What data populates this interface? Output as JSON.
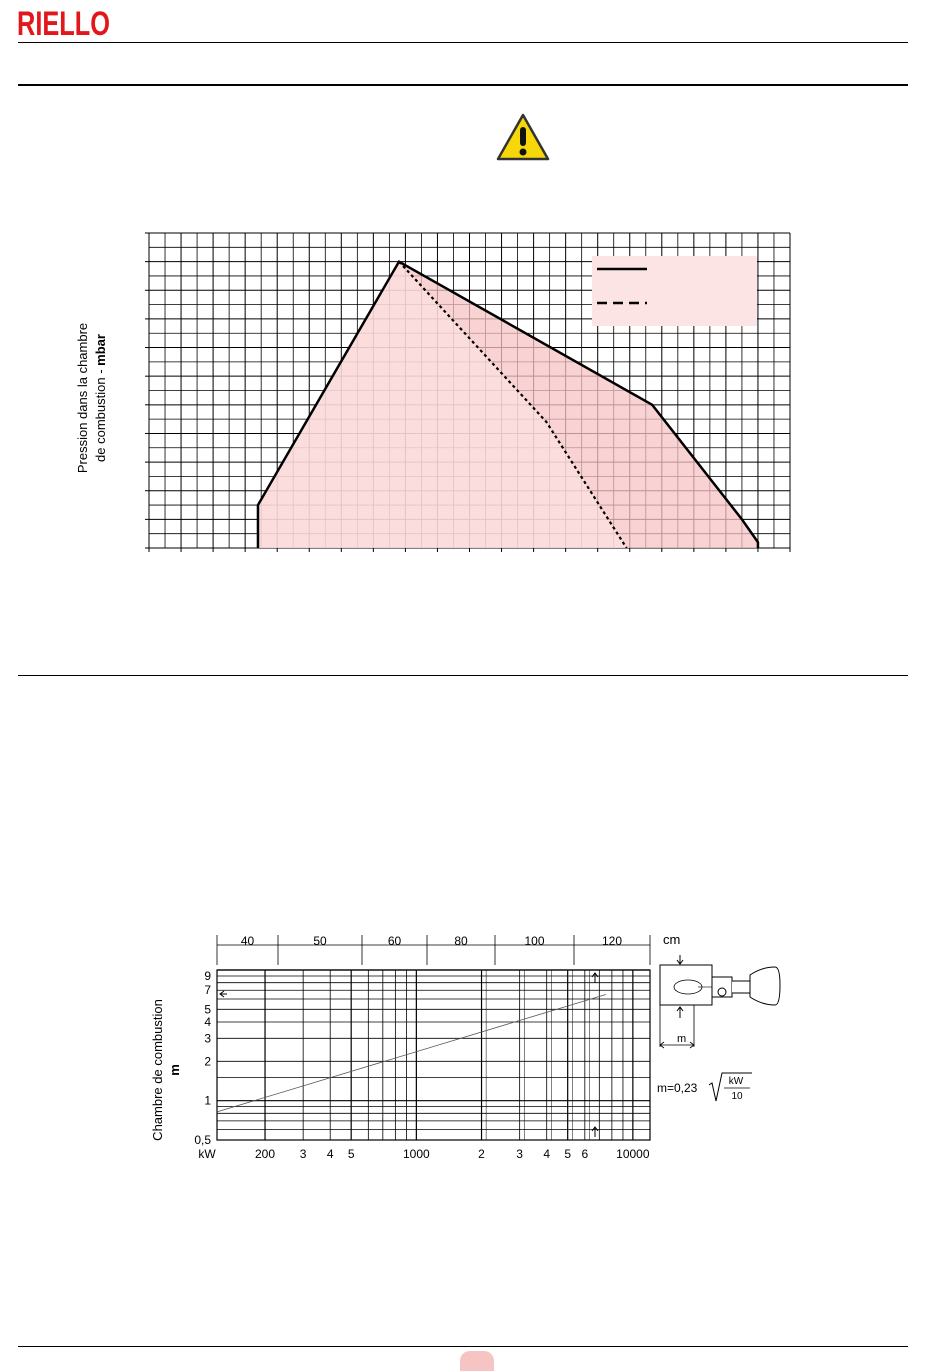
{
  "header": {
    "logo_text": "RIELLO",
    "brand_color": "#e3161b"
  },
  "warning_icon": "warning-triangle-icon",
  "firing_range_chart": {
    "ylabel_line1": "Pression dans la chambre",
    "ylabel_line2_prefix": "de combustion - ",
    "ylabel_line2_unit": "mbar",
    "fill_color": "#f7c4c4",
    "legend": [
      {
        "style": "solid"
      },
      {
        "style": "dashed"
      }
    ]
  },
  "chart_data": [
    {
      "type": "area",
      "title": "",
      "xlabel": "",
      "ylabel": "Pression dans la chambre de combustion - mbar",
      "grid": true,
      "legend_placement": "top-right",
      "xlim": [
        0,
        20
      ],
      "ylim": [
        0,
        11
      ],
      "series": [
        {
          "style": "solid",
          "x": [
            3.4,
            3.4,
            7.8,
            15.7,
            18.5,
            19.0,
            19.0
          ],
          "y": [
            0,
            1.5,
            10,
            5,
            1,
            0.2,
            0
          ]
        },
        {
          "style": "dashed",
          "x": [
            7.8,
            12.4,
            14.9
          ],
          "y": [
            10,
            4.4,
            0
          ]
        }
      ]
    },
    {
      "type": "line",
      "title": "",
      "xlabel": "kW",
      "ylabel": "Chambre de combustion m",
      "scale": "log-log",
      "grid": true,
      "x_tick_labels": [
        "kW",
        "200",
        "3",
        "4",
        "5",
        "1000",
        "2",
        "3",
        "4",
        "5",
        "6",
        "10000"
      ],
      "y_tick_labels": [
        "0,5",
        "1",
        "2",
        "3",
        "4",
        "5",
        "7",
        "9"
      ],
      "top_scale_label": "cm",
      "top_scale": [
        "40",
        "50",
        "60",
        "80",
        "100",
        "120"
      ],
      "formula": {
        "prefix": "m=0,23",
        "numerator": "kW",
        "denominator": "10"
      },
      "diagram_label": "m",
      "series": [
        {
          "x": [
            120,
            7500
          ],
          "y": [
            0.82,
            6.5
          ]
        }
      ]
    }
  ]
}
